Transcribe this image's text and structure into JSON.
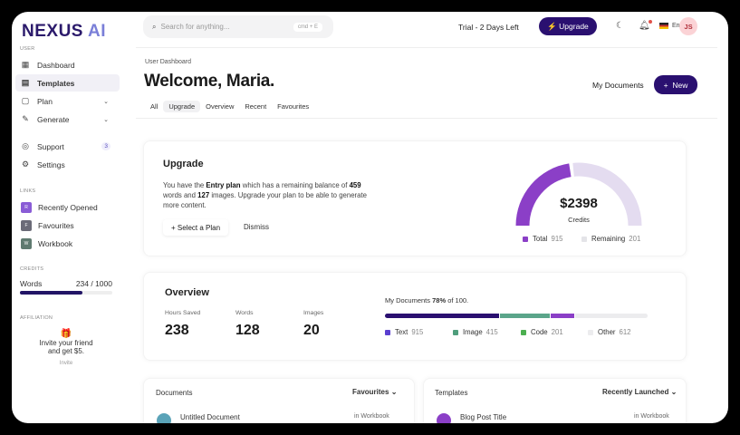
{
  "app": {
    "logo_text": "NEXUS",
    "logo_suffix": "AI"
  },
  "sidebar": {
    "section_user": "USER",
    "items": [
      {
        "label": "Dashboard",
        "icon": "grid-icon"
      },
      {
        "label": "Templates",
        "icon": "document-icon",
        "active": true
      },
      {
        "label": "Plan",
        "icon": "plan-icon"
      },
      {
        "label": "Generate",
        "icon": "pen-icon"
      },
      {
        "label": "Support",
        "icon": "lifebuoy-icon",
        "badge": "3"
      },
      {
        "label": "Settings",
        "icon": "gear-icon"
      }
    ],
    "section_links": "LINKS",
    "links": [
      {
        "label": "Recently Opened",
        "letter": "R",
        "color": "#8a5cd6"
      },
      {
        "label": "Favourites",
        "letter": "F",
        "color": "#6b6b78"
      },
      {
        "label": "Workbook",
        "letter": "W",
        "color": "#5f7a70"
      }
    ],
    "section_credits": "CREDITS",
    "credits": {
      "label": "Words",
      "value": "234 / 1000",
      "fill": 0.68
    },
    "section_affiliation": "AFFILIATION",
    "affiliation": {
      "text1": "Invite your friend",
      "text2": "and get $5.",
      "button": "Invite"
    }
  },
  "topbar": {
    "search_placeholder": "Search for anything...",
    "shortcut": "cmd + E",
    "trial": "Trial - 2 Days Left",
    "upgrade": "Upgrade",
    "language": "En",
    "avatar": "JS"
  },
  "header": {
    "breadcrumb": "User Dashboard",
    "title": "Welcome, Maria.",
    "tabs": [
      "All",
      "Upgrade",
      "Overview",
      "Recent",
      "Favourites"
    ],
    "active_tab": "Upgrade",
    "my_documents": "My Documents",
    "new": "New"
  },
  "upgrade_card": {
    "title": "Upgrade",
    "t1": "You have the ",
    "plan": "Entry plan",
    "t2": " which has a remaining balance of ",
    "words": "459",
    "t3": " words and ",
    "images": "127",
    "t4": " images. Upgrade your plan to be able to generate more content.",
    "select_plan": "Select a Plan",
    "dismiss": "Dismiss",
    "gauge": {
      "amount": "$2398",
      "label": "Credits",
      "fill": 0.46,
      "legend": [
        {
          "label": "Total",
          "value": "915",
          "color": "#8b3fc7"
        },
        {
          "label": "Remaining",
          "value": "201",
          "color": "#e4dcf0"
        }
      ]
    }
  },
  "overview": {
    "title": "Overview",
    "stats": [
      {
        "label": "Hours Saved",
        "value": "238"
      },
      {
        "label": "Words",
        "value": "128"
      },
      {
        "label": "Images",
        "value": "20"
      }
    ],
    "docs_pre": "My Documents ",
    "docs_pct": "78%",
    "docs_post": " of 100.",
    "bar": [
      {
        "fraction": 0.44,
        "color": "#2a1070"
      },
      {
        "fraction": 0.19,
        "color": "#5ba58a"
      },
      {
        "fraction": 0.09,
        "color": "#8b3fc7"
      },
      {
        "fraction": 0.28,
        "color": "#ececee"
      }
    ],
    "legend": [
      {
        "label": "Text",
        "value": "915",
        "color": "#5b3fd0"
      },
      {
        "label": "Image",
        "value": "415",
        "color": "#4f9e7c"
      },
      {
        "label": "Code",
        "value": "201",
        "color": "#4caf50"
      },
      {
        "label": "Other",
        "value": "612",
        "color": "#ececee"
      }
    ]
  },
  "documents": {
    "title": "Documents",
    "filter": "Favourites",
    "row": {
      "name": "Untitled Document",
      "location": "in Workbook"
    }
  },
  "templates": {
    "title": "Templates",
    "filter": "Recently Launched",
    "row": {
      "name": "Blog Post Title",
      "location": "in Workbook"
    }
  }
}
